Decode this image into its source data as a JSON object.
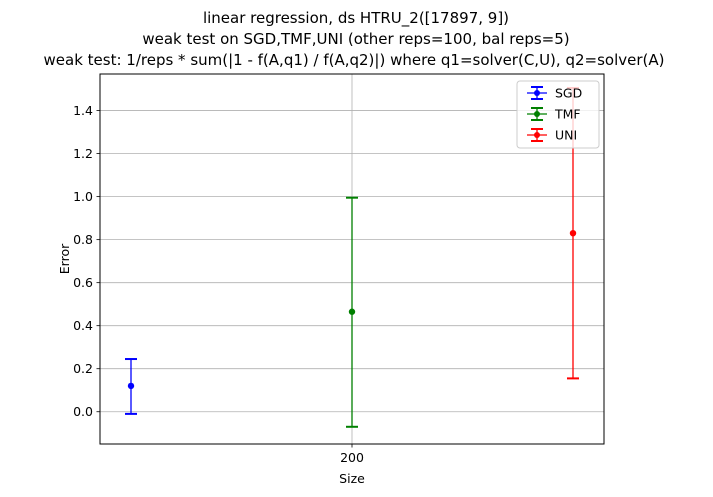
{
  "chart_data": {
    "type": "errorbar",
    "title_lines": [
      "linear regression, ds HTRU_2([17897, 9])",
      "weak test on SGD,TMF,UNI (other reps=100, bal reps=5)",
      "weak test: 1/reps * sum(|1 - f(A,q1) / f(A,q2)|) where q1=solver(C,U), q2=solver(A)"
    ],
    "xlabel": "Size",
    "ylabel": "Error",
    "x_ticks": [
      "200"
    ],
    "y_ticks": [
      "0.0",
      "0.2",
      "0.4",
      "0.6",
      "0.8",
      "1.0",
      "1.2",
      "1.4"
    ],
    "ylim": [
      -0.15,
      1.57
    ],
    "grid": true,
    "legend_position": "upper-right",
    "series": [
      {
        "name": "SGD",
        "color": "#0000ff",
        "x_offset": -1,
        "mean": 0.12,
        "low": -0.01,
        "high": 0.245
      },
      {
        "name": "TMF",
        "color": "#008000",
        "x_offset": 0,
        "mean": 0.465,
        "low": -0.07,
        "high": 0.995
      },
      {
        "name": "UNI",
        "color": "#ff0000",
        "x_offset": 1,
        "mean": 0.83,
        "low": 0.155,
        "high": 1.505
      }
    ]
  }
}
